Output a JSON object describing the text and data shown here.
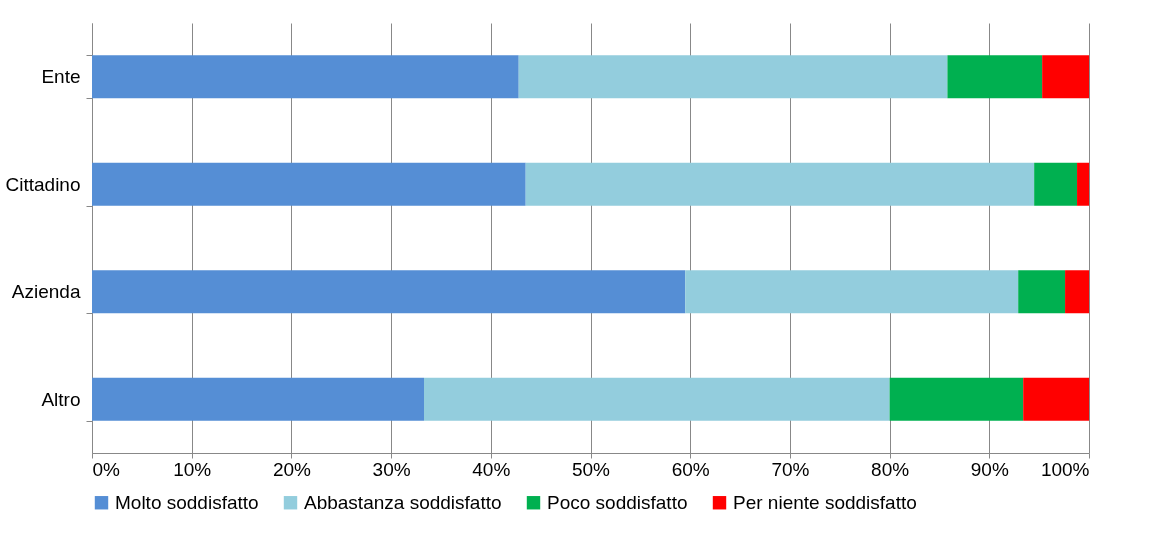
{
  "chart_data": {
    "type": "bar",
    "orientation": "horizontal",
    "stacked": true,
    "categories": [
      "Ente",
      "Cittadino",
      "Azienda",
      "Altro"
    ],
    "series": [
      {
        "name": "Molto soddisfatto",
        "color": "#558ed5",
        "values": [
          42.8,
          43.5,
          59.5,
          33.3
        ]
      },
      {
        "name": "Abbastanza soddisfatto",
        "color": "#93cddd",
        "values": [
          43.0,
          51.0,
          33.4,
          46.7
        ]
      },
      {
        "name": "Poco soddisfatto",
        "color": "#00b050",
        "values": [
          9.5,
          4.3,
          4.7,
          13.4
        ]
      },
      {
        "name": "Per niente soddisfatto",
        "color": "#ff0000",
        "values": [
          4.7,
          1.2,
          2.4,
          6.6
        ]
      }
    ],
    "xlim": [
      0,
      100
    ],
    "xticks": [
      {
        "value": 0,
        "label": "0%"
      },
      {
        "value": 10,
        "label": "10%"
      },
      {
        "value": 20,
        "label": "20%"
      },
      {
        "value": 30,
        "label": "30%"
      },
      {
        "value": 40,
        "label": "40%"
      },
      {
        "value": 50,
        "label": "50%"
      },
      {
        "value": 60,
        "label": "60%"
      },
      {
        "value": 70,
        "label": "70%"
      },
      {
        "value": 80,
        "label": "80%"
      },
      {
        "value": 90,
        "label": "90%"
      },
      {
        "value": 100,
        "label": "100%"
      }
    ],
    "grid": "x",
    "legend": "bottom"
  }
}
